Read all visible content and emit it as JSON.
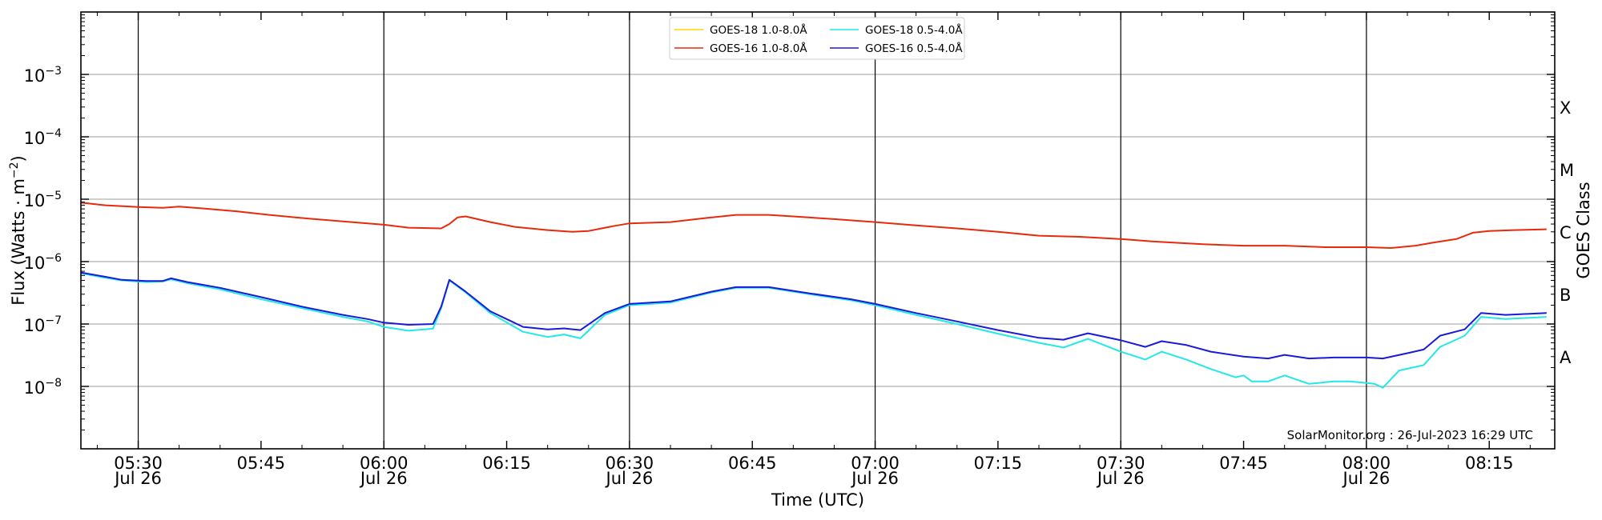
{
  "chart_data": {
    "type": "line",
    "xlabel": "Time (UTC)",
    "ylabel": "Flux (Watts · m",
    "ylabel_exp": "−2",
    "ylabel_close": ")",
    "right_label": "GOES Class",
    "credit": "SolarMonitor.org : 26-Jul-2023 16:29 UTC",
    "log_y": true,
    "grid": "horizontal",
    "legend_placement": "top-center",
    "xlim": [
      "05:23",
      "08:23"
    ],
    "ylim": [
      1e-09,
      0.01
    ],
    "y_ticks": [
      {
        "value": 1e-08,
        "base": "10",
        "exp": "−8"
      },
      {
        "value": 1e-07,
        "base": "10",
        "exp": "−7"
      },
      {
        "value": 1e-06,
        "base": "10",
        "exp": "−6"
      },
      {
        "value": 1e-05,
        "base": "10",
        "exp": "−5"
      },
      {
        "value": 0.0001,
        "base": "10",
        "exp": "−4"
      },
      {
        "value": 0.001,
        "base": "10",
        "exp": "−3"
      }
    ],
    "x_ticks": [
      {
        "time": "05:30",
        "label": "05:30",
        "date": "Jul 26"
      },
      {
        "time": "05:45",
        "label": "05:45",
        "date": ""
      },
      {
        "time": "06:00",
        "label": "06:00",
        "date": "Jul 26"
      },
      {
        "time": "06:15",
        "label": "06:15",
        "date": ""
      },
      {
        "time": "06:30",
        "label": "06:30",
        "date": "Jul 26"
      },
      {
        "time": "06:45",
        "label": "06:45",
        "date": ""
      },
      {
        "time": "07:00",
        "label": "07:00",
        "date": "Jul 26"
      },
      {
        "time": "07:15",
        "label": "07:15",
        "date": ""
      },
      {
        "time": "07:30",
        "label": "07:30",
        "date": "Jul 26"
      },
      {
        "time": "07:45",
        "label": "07:45",
        "date": ""
      },
      {
        "time": "08:00",
        "label": "08:00",
        "date": "Jul 26"
      },
      {
        "time": "08:15",
        "label": "08:15",
        "date": ""
      }
    ],
    "vertical_lines": [
      "05:30",
      "06:00",
      "06:30",
      "07:00",
      "07:30",
      "08:00"
    ],
    "goes_classes": [
      {
        "label": "A",
        "value": 3e-08
      },
      {
        "label": "B",
        "value": 3e-07
      },
      {
        "label": "C",
        "value": 3e-06
      },
      {
        "label": "M",
        "value": 3e-05
      },
      {
        "label": "X",
        "value": 0.0003
      }
    ],
    "series": [
      {
        "name": "GOES-18 1.0-8.0Å",
        "color": "#ffd700",
        "points": []
      },
      {
        "name": "GOES-16 1.0-8.0Å",
        "color": "#e8290b",
        "points": [
          [
            "05:23",
            8.8e-06
          ],
          [
            "05:26",
            8e-06
          ],
          [
            "05:30",
            7.5e-06
          ],
          [
            "05:33",
            7.3e-06
          ],
          [
            "05:35",
            7.6e-06
          ],
          [
            "05:38",
            7.1e-06
          ],
          [
            "05:42",
            6.4e-06
          ],
          [
            "05:46",
            5.6e-06
          ],
          [
            "05:50",
            5e-06
          ],
          [
            "05:55",
            4.4e-06
          ],
          [
            "06:00",
            3.9e-06
          ],
          [
            "06:03",
            3.5e-06
          ],
          [
            "06:07",
            3.4e-06
          ],
          [
            "06:08",
            4e-06
          ],
          [
            "06:09",
            5.1e-06
          ],
          [
            "06:10",
            5.3e-06
          ],
          [
            "06:13",
            4.3e-06
          ],
          [
            "06:16",
            3.6e-06
          ],
          [
            "06:20",
            3.2e-06
          ],
          [
            "06:23",
            3e-06
          ],
          [
            "06:25",
            3.1e-06
          ],
          [
            "06:28",
            3.7e-06
          ],
          [
            "06:30",
            4.1e-06
          ],
          [
            "06:35",
            4.3e-06
          ],
          [
            "06:40",
            5.1e-06
          ],
          [
            "06:43",
            5.6e-06
          ],
          [
            "06:47",
            5.6e-06
          ],
          [
            "06:50",
            5.3e-06
          ],
          [
            "06:55",
            4.8e-06
          ],
          [
            "07:00",
            4.3e-06
          ],
          [
            "07:05",
            3.8e-06
          ],
          [
            "07:10",
            3.4e-06
          ],
          [
            "07:15",
            3e-06
          ],
          [
            "07:20",
            2.6e-06
          ],
          [
            "07:25",
            2.5e-06
          ],
          [
            "07:30",
            2.3e-06
          ],
          [
            "07:34",
            2.1e-06
          ],
          [
            "07:40",
            1.9e-06
          ],
          [
            "07:45",
            1.8e-06
          ],
          [
            "07:50",
            1.8e-06
          ],
          [
            "07:55",
            1.7e-06
          ],
          [
            "08:00",
            1.7e-06
          ],
          [
            "08:03",
            1.65e-06
          ],
          [
            "08:06",
            1.8e-06
          ],
          [
            "08:08",
            2e-06
          ],
          [
            "08:11",
            2.3e-06
          ],
          [
            "08:13",
            2.9e-06
          ],
          [
            "08:15",
            3.1e-06
          ],
          [
            "08:18",
            3.2e-06
          ],
          [
            "08:22",
            3.3e-06
          ]
        ]
      },
      {
        "name": "GOES-18 0.5-4.0Å",
        "color": "#22e8e8",
        "points": [
          [
            "05:23",
            6.5e-07
          ],
          [
            "05:26",
            5.5e-07
          ],
          [
            "05:28",
            5e-07
          ],
          [
            "05:31",
            4.7e-07
          ],
          [
            "05:33",
            4.8e-07
          ],
          [
            "05:34",
            5.2e-07
          ],
          [
            "05:36",
            4.5e-07
          ],
          [
            "05:40",
            3.6e-07
          ],
          [
            "05:45",
            2.5e-07
          ],
          [
            "05:50",
            1.8e-07
          ],
          [
            "05:55",
            1.3e-07
          ],
          [
            "05:58",
            1.1e-07
          ],
          [
            "06:00",
            9e-08
          ],
          [
            "06:03",
            7.8e-08
          ],
          [
            "06:06",
            8.4e-08
          ],
          [
            "06:07",
            1.8e-07
          ],
          [
            "06:08",
            5e-07
          ],
          [
            "06:10",
            3.2e-07
          ],
          [
            "06:13",
            1.5e-07
          ],
          [
            "06:17",
            7.5e-08
          ],
          [
            "06:20",
            6.2e-08
          ],
          [
            "06:22",
            6.8e-08
          ],
          [
            "06:24",
            5.9e-08
          ],
          [
            "06:27",
            1.4e-07
          ],
          [
            "06:30",
            2e-07
          ],
          [
            "06:35",
            2.2e-07
          ],
          [
            "06:40",
            3.2e-07
          ],
          [
            "06:43",
            3.8e-07
          ],
          [
            "06:47",
            3.8e-07
          ],
          [
            "06:52",
            3e-07
          ],
          [
            "06:57",
            2.4e-07
          ],
          [
            "07:00",
            2e-07
          ],
          [
            "07:05",
            1.4e-07
          ],
          [
            "07:10",
            1e-07
          ],
          [
            "07:15",
            7e-08
          ],
          [
            "07:20",
            5e-08
          ],
          [
            "07:23",
            4.2e-08
          ],
          [
            "07:26",
            5.8e-08
          ],
          [
            "07:30",
            3.6e-08
          ],
          [
            "07:33",
            2.7e-08
          ],
          [
            "07:35",
            3.6e-08
          ],
          [
            "07:38",
            2.7e-08
          ],
          [
            "07:41",
            1.9e-08
          ],
          [
            "07:44",
            1.4e-08
          ],
          [
            "07:45",
            1.5e-08
          ],
          [
            "07:46",
            1.2e-08
          ],
          [
            "07:48",
            1.2e-08
          ],
          [
            "07:50",
            1.5e-08
          ],
          [
            "07:53",
            1.1e-08
          ],
          [
            "07:56",
            1.2e-08
          ],
          [
            "07:58",
            1.2e-08
          ],
          [
            "08:01",
            1.1e-08
          ],
          [
            "08:02",
            9.5e-09
          ],
          [
            "08:04",
            1.8e-08
          ],
          [
            "08:07",
            2.2e-08
          ],
          [
            "08:09",
            4.3e-08
          ],
          [
            "08:12",
            6.5e-08
          ],
          [
            "08:14",
            1.3e-07
          ],
          [
            "08:17",
            1.2e-07
          ],
          [
            "08:22",
            1.3e-07
          ]
        ]
      },
      {
        "name": "GOES-16 0.5-4.0Å",
        "color": "#1a1ad9",
        "points": [
          [
            "05:23",
            6.7e-07
          ],
          [
            "05:26",
            5.7e-07
          ],
          [
            "05:28",
            5.1e-07
          ],
          [
            "05:31",
            4.9e-07
          ],
          [
            "05:33",
            4.9e-07
          ],
          [
            "05:34",
            5.4e-07
          ],
          [
            "05:36",
            4.7e-07
          ],
          [
            "05:40",
            3.8e-07
          ],
          [
            "05:45",
            2.7e-07
          ],
          [
            "05:50",
            1.9e-07
          ],
          [
            "05:55",
            1.4e-07
          ],
          [
            "05:58",
            1.2e-07
          ],
          [
            "06:00",
            1.05e-07
          ],
          [
            "06:03",
            9.7e-08
          ],
          [
            "06:06",
            1e-07
          ],
          [
            "06:07",
            1.9e-07
          ],
          [
            "06:08",
            5.1e-07
          ],
          [
            "06:10",
            3.3e-07
          ],
          [
            "06:13",
            1.6e-07
          ],
          [
            "06:17",
            9e-08
          ],
          [
            "06:20",
            8.2e-08
          ],
          [
            "06:22",
            8.5e-08
          ],
          [
            "06:24",
            8e-08
          ],
          [
            "06:27",
            1.5e-07
          ],
          [
            "06:30",
            2.1e-07
          ],
          [
            "06:35",
            2.3e-07
          ],
          [
            "06:40",
            3.3e-07
          ],
          [
            "06:43",
            3.9e-07
          ],
          [
            "06:47",
            3.9e-07
          ],
          [
            "06:52",
            3.1e-07
          ],
          [
            "06:57",
            2.5e-07
          ],
          [
            "07:00",
            2.1e-07
          ],
          [
            "07:05",
            1.5e-07
          ],
          [
            "07:10",
            1.1e-07
          ],
          [
            "07:15",
            8e-08
          ],
          [
            "07:20",
            6e-08
          ],
          [
            "07:23",
            5.6e-08
          ],
          [
            "07:26",
            7.1e-08
          ],
          [
            "07:30",
            5.5e-08
          ],
          [
            "07:33",
            4.3e-08
          ],
          [
            "07:35",
            5.3e-08
          ],
          [
            "07:38",
            4.6e-08
          ],
          [
            "07:41",
            3.6e-08
          ],
          [
            "07:45",
            3e-08
          ],
          [
            "07:48",
            2.8e-08
          ],
          [
            "07:50",
            3.2e-08
          ],
          [
            "07:53",
            2.8e-08
          ],
          [
            "07:56",
            2.9e-08
          ],
          [
            "08:00",
            2.9e-08
          ],
          [
            "08:02",
            2.8e-08
          ],
          [
            "08:05",
            3.4e-08
          ],
          [
            "08:07",
            3.9e-08
          ],
          [
            "08:09",
            6.5e-08
          ],
          [
            "08:12",
            8.2e-08
          ],
          [
            "08:14",
            1.5e-07
          ],
          [
            "08:17",
            1.4e-07
          ],
          [
            "08:22",
            1.5e-07
          ]
        ]
      }
    ]
  }
}
